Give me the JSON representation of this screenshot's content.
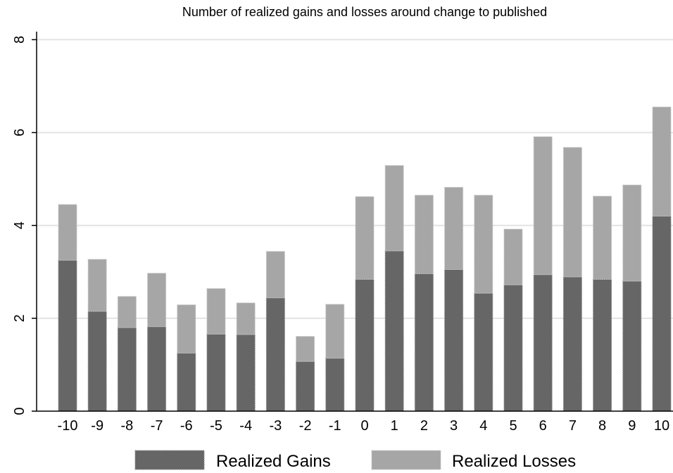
{
  "chart_data": {
    "type": "bar",
    "stacked": true,
    "title": "Number of realized gains and losses around change to published",
    "xlabel": "",
    "ylabel": "",
    "categories": [
      "-10",
      "-9",
      "-8",
      "-7",
      "-6",
      "-5",
      "-4",
      "-3",
      "-2",
      "-1",
      "0",
      "1",
      "2",
      "3",
      "4",
      "5",
      "6",
      "7",
      "8",
      "9",
      "10"
    ],
    "series": [
      {
        "name": "Realized Gains",
        "color": "#666666",
        "values": [
          3.25,
          2.15,
          1.8,
          1.82,
          1.25,
          1.66,
          1.65,
          2.44,
          1.07,
          1.14,
          2.84,
          3.45,
          2.96,
          3.05,
          2.54,
          2.72,
          2.94,
          2.89,
          2.84,
          2.8,
          4.2
        ]
      },
      {
        "name": "Realized Losses",
        "color": "#a6a6a6",
        "values": [
          1.2,
          1.12,
          0.67,
          1.15,
          1.04,
          0.98,
          0.68,
          1.0,
          0.54,
          1.16,
          1.78,
          1.84,
          1.69,
          1.77,
          2.11,
          1.2,
          2.97,
          2.79,
          1.79,
          2.07,
          2.35
        ]
      }
    ],
    "ylim": [
      0,
      8.4
    ],
    "yticks": [
      "0",
      "2",
      "4",
      "6",
      "8"
    ],
    "ytick_values": [
      0,
      2,
      4,
      6,
      8
    ],
    "grid": true,
    "legend_position": "bottom"
  }
}
